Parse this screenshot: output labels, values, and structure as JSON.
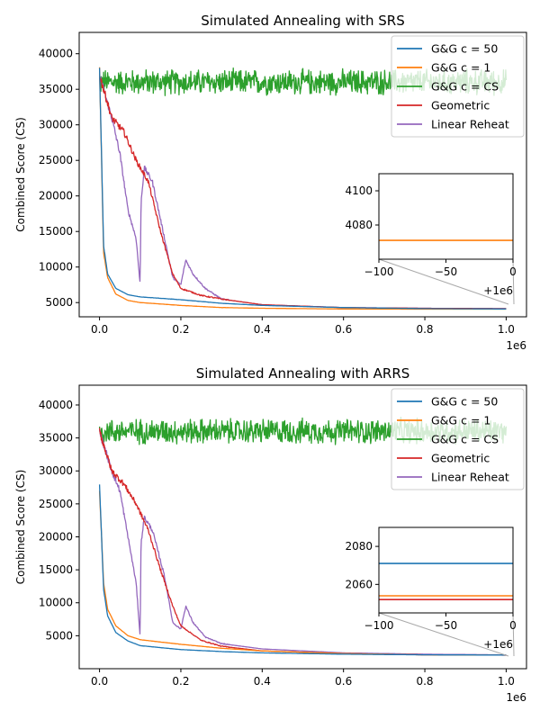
{
  "figure": {
    "offset_text": "1e6",
    "inset_offset_text": "+1e6"
  },
  "series_styles": [
    {
      "name": "G&G c = 50",
      "color": "#1f77b4"
    },
    {
      "name": "G&G c = 1",
      "color": "#ff7f0e"
    },
    {
      "name": "G&G c = CS",
      "color": "#2ca02c"
    },
    {
      "name": "Geometric",
      "color": "#d62728"
    },
    {
      "name": "Linear Reheat",
      "color": "#9467bd"
    }
  ],
  "chart_data": [
    {
      "type": "line",
      "title": "Simulated Annealing with SRS",
      "xlabel": "",
      "ylabel": "Combined Score (CS)",
      "xlim": [
        -50000,
        1050000
      ],
      "ylim": [
        3000,
        43000
      ],
      "xticks": [
        0,
        200000,
        400000,
        600000,
        800000,
        1000000
      ],
      "xtick_labels": [
        "0.0",
        "0.2",
        "0.4",
        "0.6",
        "0.8",
        "1.0"
      ],
      "yticks": [
        5000,
        10000,
        15000,
        20000,
        25000,
        30000,
        35000,
        40000
      ],
      "ytick_labels": [
        "5000",
        "10000",
        "15000",
        "20000",
        "25000",
        "30000",
        "35000",
        "40000"
      ],
      "legend": "top-right",
      "series": [
        {
          "name": "G&G c = 50",
          "x": [
            0,
            10000,
            20000,
            40000,
            70000,
            100000,
            200000,
            300000,
            400000,
            600000,
            800000,
            1000000
          ],
          "y": [
            38000,
            13000,
            9000,
            7000,
            6100,
            5800,
            5400,
            4900,
            4600,
            4300,
            4150,
            4100
          ]
        },
        {
          "name": "G&G c = 1",
          "x": [
            0,
            10000,
            20000,
            40000,
            70000,
            100000,
            200000,
            300000,
            400000,
            600000,
            800000,
            1000000
          ],
          "y": [
            38000,
            12000,
            8500,
            6200,
            5300,
            5000,
            4600,
            4300,
            4200,
            4100,
            4075,
            4071
          ]
        },
        {
          "name": "G&G c = CS",
          "x": [
            0,
            1000000
          ],
          "y": [
            36000,
            36000
          ],
          "noise": 1600
        },
        {
          "name": "Geometric",
          "x": [
            0,
            30000,
            60000,
            90000,
            120000,
            150000,
            180000,
            200000,
            250000,
            300000,
            400000,
            600000,
            800000,
            1000000
          ],
          "y": [
            37000,
            31000,
            29000,
            25000,
            22000,
            15000,
            9000,
            7000,
            6000,
            5500,
            4700,
            4300,
            4200,
            4150
          ]
        },
        {
          "name": "Linear Reheat",
          "x": [
            0,
            30000,
            50000,
            70000,
            90000,
            100000,
            102000,
            110000,
            130000,
            160000,
            180000,
            200000,
            212000,
            230000,
            260000,
            300000,
            400000,
            600000,
            800000,
            1000000
          ],
          "y": [
            37000,
            31000,
            26000,
            18000,
            14000,
            7500,
            19000,
            24000,
            22000,
            14000,
            8500,
            7500,
            11000,
            9000,
            7000,
            5500,
            4700,
            4300,
            4200,
            4150
          ]
        }
      ],
      "inset": {
        "xlim": [
          -100,
          0
        ],
        "ylim": [
          4060,
          4110
        ],
        "xticks": [
          -100,
          -50,
          0
        ],
        "xtick_labels": [
          "−100",
          "−50",
          "0"
        ],
        "yticks": [
          4080,
          4100
        ],
        "ytick_labels": [
          "4080",
          "4100"
        ],
        "series": [
          {
            "name": "G&G c = 1",
            "y": 4071
          }
        ]
      }
    },
    {
      "type": "line",
      "title": "Simulated Annealing with ARRS",
      "xlabel": "",
      "ylabel": "Combined Score (CS)",
      "xlim": [
        -50000,
        1050000
      ],
      "ylim": [
        0,
        43000
      ],
      "xticks": [
        0,
        200000,
        400000,
        600000,
        800000,
        1000000
      ],
      "xtick_labels": [
        "0.0",
        "0.2",
        "0.4",
        "0.6",
        "0.8",
        "1.0"
      ],
      "yticks": [
        5000,
        10000,
        15000,
        20000,
        25000,
        30000,
        35000,
        40000
      ],
      "ytick_labels": [
        "5000",
        "10000",
        "15000",
        "20000",
        "25000",
        "30000",
        "35000",
        "40000"
      ],
      "legend": "top-right",
      "series": [
        {
          "name": "G&G c = 50",
          "x": [
            0,
            10000,
            20000,
            40000,
            70000,
            100000,
            200000,
            300000,
            400000,
            600000,
            800000,
            1000000
          ],
          "y": [
            28000,
            12000,
            8000,
            5500,
            4200,
            3500,
            2900,
            2600,
            2400,
            2200,
            2100,
            2071
          ]
        },
        {
          "name": "G&G c = 1",
          "x": [
            0,
            10000,
            20000,
            40000,
            70000,
            100000,
            200000,
            300000,
            400000,
            600000,
            800000,
            1000000
          ],
          "y": [
            27000,
            13000,
            9000,
            6500,
            5000,
            4400,
            3700,
            3100,
            2700,
            2300,
            2100,
            2054
          ]
        },
        {
          "name": "G&G c = CS",
          "x": [
            0,
            1000000
          ],
          "y": [
            36000,
            36000
          ],
          "noise": 1700
        },
        {
          "name": "Geometric",
          "x": [
            0,
            30000,
            60000,
            90000,
            120000,
            150000,
            180000,
            200000,
            250000,
            300000,
            400000,
            600000,
            800000,
            1000000
          ],
          "y": [
            36000,
            30000,
            28000,
            25000,
            21000,
            15000,
            9500,
            6500,
            4300,
            3400,
            2700,
            2300,
            2100,
            2052
          ]
        },
        {
          "name": "Linear Reheat",
          "x": [
            0,
            30000,
            50000,
            70000,
            90000,
            100000,
            102000,
            110000,
            130000,
            160000,
            180000,
            200000,
            212000,
            230000,
            260000,
            300000,
            400000,
            600000,
            800000,
            1000000
          ],
          "y": [
            36000,
            30000,
            27000,
            20000,
            13000,
            4800,
            19000,
            23000,
            21000,
            14000,
            7000,
            6000,
            9500,
            7000,
            4800,
            3800,
            3000,
            2400,
            2200,
            2100
          ]
        }
      ],
      "inset": {
        "xlim": [
          -100,
          0
        ],
        "ylim": [
          2045,
          2090
        ],
        "xticks": [
          -100,
          -50,
          0
        ],
        "xtick_labels": [
          "−100",
          "−50",
          "0"
        ],
        "yticks": [
          2060,
          2080
        ],
        "ytick_labels": [
          "2060",
          "2080"
        ],
        "series": [
          {
            "name": "G&G c = 50",
            "y": 2071
          },
          {
            "name": "G&G c = 1",
            "y": 2054
          },
          {
            "name": "Geometric",
            "y": 2052
          }
        ]
      }
    }
  ]
}
